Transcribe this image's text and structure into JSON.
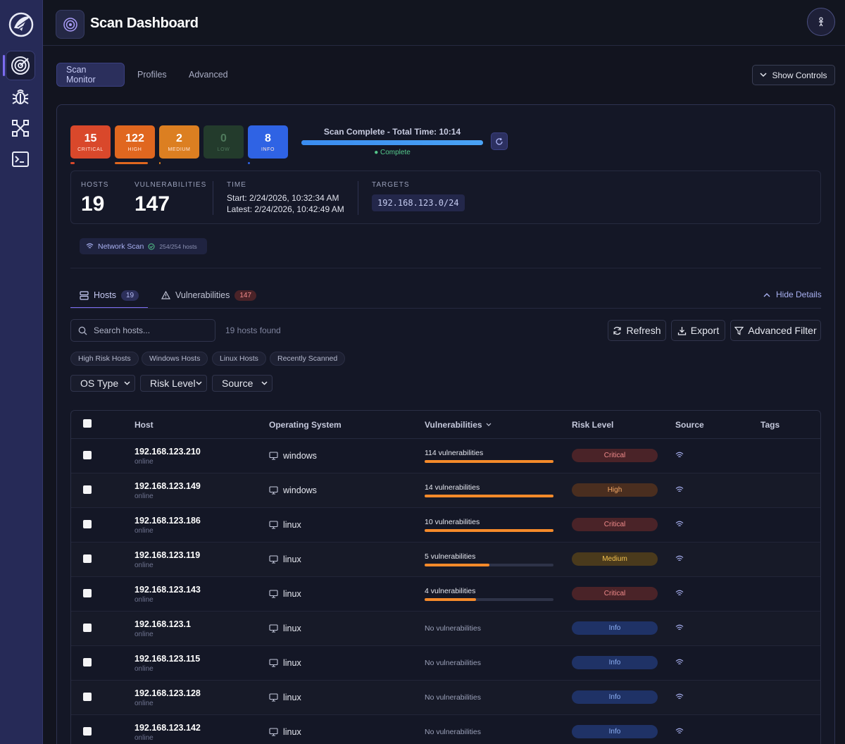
{
  "header": {
    "title": "Scan Dashboard"
  },
  "tabs": [
    "Scan Monitor",
    "Profiles",
    "Advanced"
  ],
  "show_controls": "Show Controls",
  "severity": [
    {
      "count": "15",
      "label": "CRITICAL",
      "color": "#d9482b"
    },
    {
      "count": "122",
      "label": "HIGH",
      "color": "#e0671f"
    },
    {
      "count": "2",
      "label": "MEDIUM",
      "color": "#dc7f21"
    },
    {
      "count": "0",
      "label": "LOW",
      "color": "#233b2c"
    },
    {
      "count": "8",
      "label": "INFO",
      "color": "#2f63e4"
    }
  ],
  "scan": {
    "status": "Scan Complete - Total Time: 10:14",
    "complete": "● Complete",
    "progress": 1.0
  },
  "stats": {
    "hosts_label": "HOSTS",
    "hosts": "19",
    "vulns_label": "VULNERABILITIES",
    "vulns": "147",
    "time_label": "TIME",
    "start": "Start: 2/24/2026, 10:32:34 AM",
    "latest": "Latest: 2/24/2026, 10:42:49 AM",
    "targets_label": "TARGETS",
    "target": "192.168.123.0/24"
  },
  "network_scan": {
    "label": "Network Scan",
    "count": "254/254 hosts"
  },
  "subtabs": {
    "hosts": "Hosts",
    "hosts_count": "19",
    "vulns": "Vulnerabilities",
    "vulns_count": "147",
    "hide_details": "Hide Details"
  },
  "toolbar": {
    "search_placeholder": "Search hosts...",
    "found": "19 hosts found",
    "refresh": "Refresh",
    "export": "Export",
    "advanced_filter": "Advanced Filter"
  },
  "quick_filters": [
    "High Risk Hosts",
    "Windows Hosts",
    "Linux Hosts",
    "Recently Scanned"
  ],
  "selects": [
    "OS Type",
    "Risk Level",
    "Source"
  ],
  "table": {
    "columns": [
      "Host",
      "Operating System",
      "Vulnerabilities",
      "Risk Level",
      "Source",
      "Tags"
    ],
    "rows": [
      {
        "host": "192.168.123.210",
        "status": "online",
        "os": "windows",
        "vulns": "114 vulnerabilities",
        "fill": 1.0,
        "risk": "Critical"
      },
      {
        "host": "192.168.123.149",
        "status": "online",
        "os": "windows",
        "vulns": "14 vulnerabilities",
        "fill": 1.0,
        "risk": "High"
      },
      {
        "host": "192.168.123.186",
        "status": "online",
        "os": "linux",
        "vulns": "10 vulnerabilities",
        "fill": 1.0,
        "risk": "Critical"
      },
      {
        "host": "192.168.123.119",
        "status": "online",
        "os": "linux",
        "vulns": "5 vulnerabilities",
        "fill": 0.5,
        "risk": "Medium"
      },
      {
        "host": "192.168.123.143",
        "status": "online",
        "os": "linux",
        "vulns": "4 vulnerabilities",
        "fill": 0.4,
        "risk": "Critical"
      },
      {
        "host": "192.168.123.1",
        "status": "online",
        "os": "linux",
        "vulns": "No vulnerabilities",
        "fill": 0,
        "risk": "Info"
      },
      {
        "host": "192.168.123.115",
        "status": "online",
        "os": "linux",
        "vulns": "No vulnerabilities",
        "fill": 0,
        "risk": "Info"
      },
      {
        "host": "192.168.123.128",
        "status": "online",
        "os": "linux",
        "vulns": "No vulnerabilities",
        "fill": 0,
        "risk": "Info"
      },
      {
        "host": "192.168.123.142",
        "status": "online",
        "os": "linux",
        "vulns": "No vulnerabilities",
        "fill": 0,
        "risk": "Info"
      }
    ]
  },
  "risk_colors": {
    "Critical": {
      "bg": "#4a2328",
      "fg": "#f08a8a"
    },
    "High": {
      "bg": "#4a2e1f",
      "fg": "#f5a865"
    },
    "Medium": {
      "bg": "#4a3a1c",
      "fg": "#f2c14e"
    },
    "Info": {
      "bg": "#1f3266",
      "fg": "#8fb2f7"
    }
  }
}
